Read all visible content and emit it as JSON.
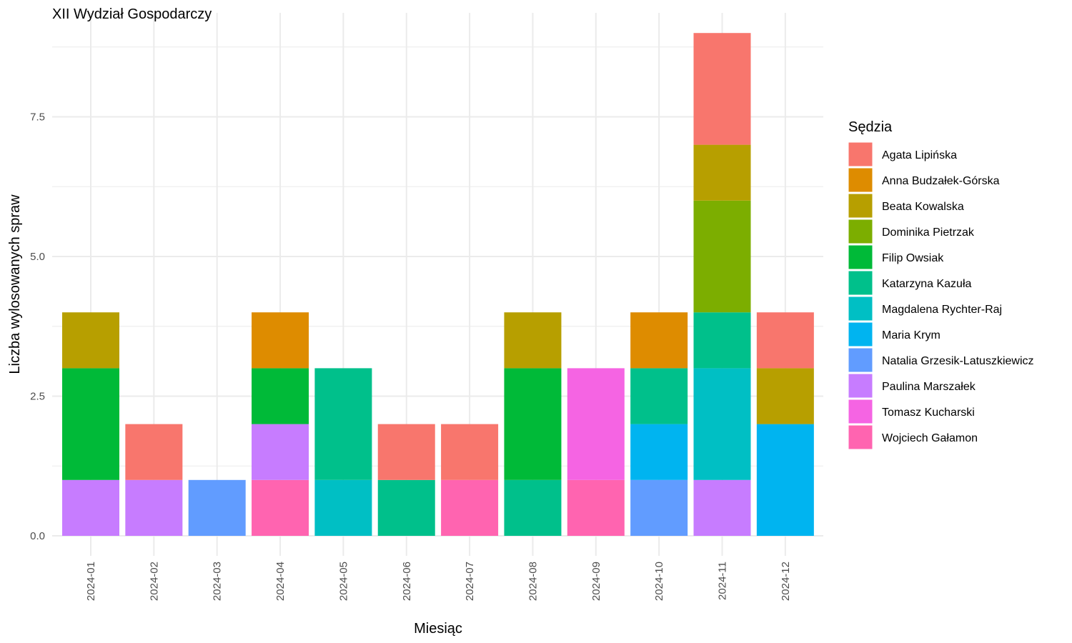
{
  "chart_data": {
    "type": "bar",
    "stacked": true,
    "title": "XII Wydział Gospodarczy",
    "xlabel": "Miesiąc",
    "ylabel": "Liczba wylosowanych spraw",
    "legend_title": "Sędzia",
    "legend_position": "right",
    "grid": true,
    "ylim": [
      0,
      9
    ],
    "yticks": [
      0,
      2.5,
      5,
      7.5
    ],
    "ytick_labels": [
      "0.0",
      "2.5",
      "5.0",
      "7.5"
    ],
    "categories": [
      "2024-01",
      "2024-02",
      "2024-03",
      "2024-04",
      "2024-05",
      "2024-06",
      "2024-07",
      "2024-08",
      "2024-09",
      "2024-10",
      "2024-11",
      "2024-12"
    ],
    "series": [
      {
        "name": "Agata Lipińska",
        "color": "#F8766D",
        "values": [
          0,
          1,
          0,
          0,
          0,
          1,
          1,
          0,
          0,
          0,
          2,
          1
        ]
      },
      {
        "name": "Anna Budzałek-Górska",
        "color": "#DE8C00",
        "values": [
          0,
          0,
          0,
          1,
          0,
          0,
          0,
          0,
          0,
          1,
          0,
          0
        ]
      },
      {
        "name": "Beata Kowalska",
        "color": "#B79F00",
        "values": [
          1,
          0,
          0,
          0,
          0,
          0,
          0,
          1,
          0,
          0,
          1,
          1
        ]
      },
      {
        "name": "Dominika Pietrzak",
        "color": "#7CAE00",
        "values": [
          0,
          0,
          0,
          0,
          0,
          0,
          0,
          0,
          0,
          0,
          2,
          0
        ]
      },
      {
        "name": "Filip Owsiak",
        "color": "#00BA38",
        "values": [
          2,
          0,
          0,
          1,
          0,
          0,
          0,
          2,
          0,
          0,
          0,
          0
        ]
      },
      {
        "name": "Katarzyna Kazuła",
        "color": "#00C08B",
        "values": [
          0,
          0,
          0,
          0,
          2,
          1,
          0,
          1,
          0,
          1,
          1,
          0
        ]
      },
      {
        "name": "Magdalena Rychter-Raj",
        "color": "#00BFC4",
        "values": [
          0,
          0,
          0,
          0,
          1,
          0,
          0,
          0,
          0,
          0,
          2,
          0
        ]
      },
      {
        "name": "Maria Krym",
        "color": "#00B4F0",
        "values": [
          0,
          0,
          0,
          0,
          0,
          0,
          0,
          0,
          0,
          1,
          0,
          2
        ]
      },
      {
        "name": "Natalia Grzesik-Latuszkiewicz",
        "color": "#619CFF",
        "values": [
          0,
          0,
          1,
          0,
          0,
          0,
          0,
          0,
          0,
          1,
          0,
          0
        ]
      },
      {
        "name": "Paulina Marszałek",
        "color": "#C77CFF",
        "values": [
          1,
          1,
          0,
          1,
          0,
          0,
          0,
          0,
          0,
          0,
          1,
          0
        ]
      },
      {
        "name": "Tomasz Kucharski",
        "color": "#F564E3",
        "values": [
          0,
          0,
          0,
          0,
          0,
          0,
          0,
          0,
          2,
          0,
          0,
          0
        ]
      },
      {
        "name": "Wojciech Gałamon",
        "color": "#FF64B0",
        "values": [
          0,
          0,
          0,
          1,
          0,
          0,
          1,
          0,
          1,
          0,
          0,
          0
        ]
      }
    ]
  }
}
